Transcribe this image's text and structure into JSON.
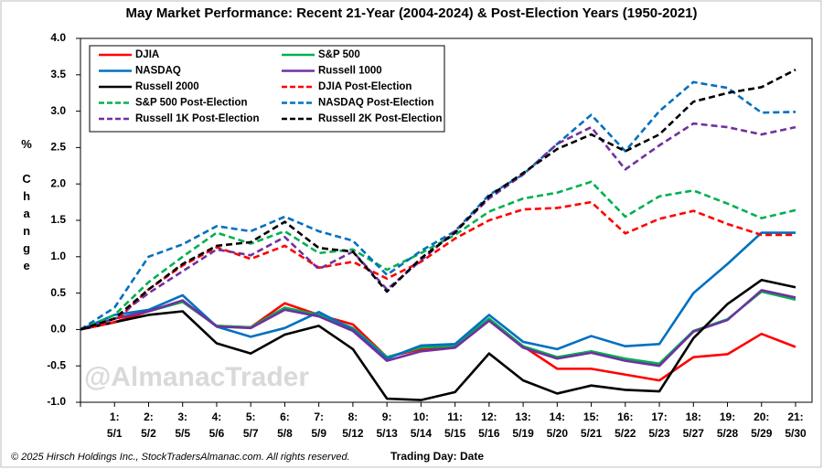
{
  "chart_data": {
    "type": "line",
    "title": "May Market Performance: Recent 21-Year (2004-2024) & Post-Election Years (1950-2021)",
    "y_label": "% Change",
    "x_label": "Trading Day: Date",
    "watermark": "@AlmanacTrader",
    "footer": "© 2025 Hirsch Holdings Inc., StockTradersAlmanac.com. All rights reserved.",
    "categories": [
      null,
      "1:",
      "2:",
      "3:",
      "4:",
      "5:",
      "6:",
      "7:",
      "8:",
      "9:",
      "10:",
      "11:",
      "12:",
      "13:",
      "14:",
      "15:",
      "16:",
      "17:",
      "18:",
      "19:",
      "20:",
      "21:"
    ],
    "category_dates": [
      null,
      "5/1",
      "5/2",
      "5/5",
      "5/6",
      "5/7",
      "5/8",
      "5/9",
      "5/12",
      "5/13",
      "5/14",
      "5/15",
      "5/16",
      "5/19",
      "5/20",
      "5/21",
      "5/22",
      "5/23",
      "5/27",
      "5/28",
      "5/29",
      "5/30"
    ],
    "ylim": [
      -1,
      4
    ],
    "yticks": [
      {
        "value": -1,
        "label": "-1.0"
      },
      {
        "value": -0.5,
        "label": "-0.5"
      },
      {
        "value": 0,
        "label": "0.0"
      },
      {
        "value": 0.5,
        "label": "0.5"
      },
      {
        "value": 1,
        "label": "1.0"
      },
      {
        "value": 1.5,
        "label": "1.5"
      },
      {
        "value": 2,
        "label": "2.0"
      },
      {
        "value": 2.5,
        "label": "2.5"
      },
      {
        "value": 3,
        "label": "3.0"
      },
      {
        "value": 3.5,
        "label": "3.5"
      },
      {
        "value": 4,
        "label": "4.0"
      }
    ],
    "grid": false,
    "legend": "top-left",
    "series": [
      {
        "name": "DJIA",
        "color": "#ff0000",
        "dashed": false,
        "values": [
          0,
          0.1,
          0.25,
          0.38,
          0.05,
          0.03,
          0.36,
          0.2,
          0.07,
          -0.38,
          -0.27,
          -0.22,
          0.13,
          -0.23,
          -0.54,
          -0.54,
          -0.62,
          -0.7,
          -0.38,
          -0.34,
          -0.06,
          -0.24
        ]
      },
      {
        "name": "S&P 500",
        "color": "#00b050",
        "dashed": false,
        "values": [
          0,
          0.15,
          0.25,
          0.38,
          0.05,
          0.03,
          0.3,
          0.2,
          0.02,
          -0.38,
          -0.25,
          -0.22,
          0.15,
          -0.23,
          -0.38,
          -0.3,
          -0.4,
          -0.47,
          -0.02,
          0.14,
          0.52,
          0.41
        ]
      },
      {
        "name": "NASDAQ",
        "color": "#0070c0",
        "dashed": false,
        "values": [
          0,
          0.2,
          0.27,
          0.47,
          0.04,
          -0.1,
          0.02,
          0.24,
          0,
          -0.4,
          -0.22,
          -0.2,
          0.2,
          -0.17,
          -0.27,
          -0.09,
          -0.23,
          -0.2,
          0.5,
          0.9,
          1.33,
          1.33
        ]
      },
      {
        "name": "Russell 1000",
        "color": "#7030a0",
        "dashed": false,
        "values": [
          0,
          0.15,
          0.25,
          0.4,
          0.04,
          0.02,
          0.27,
          0.18,
          -0.02,
          -0.43,
          -0.3,
          -0.25,
          0.12,
          -0.25,
          -0.4,
          -0.32,
          -0.43,
          -0.5,
          -0.03,
          0.13,
          0.54,
          0.44
        ]
      },
      {
        "name": "Russell 2000",
        "color": "#000000",
        "dashed": false,
        "values": [
          0,
          0.1,
          0.2,
          0.25,
          -0.19,
          -0.33,
          -0.07,
          0.05,
          -0.27,
          -0.95,
          -0.97,
          -0.86,
          -0.33,
          -0.7,
          -0.88,
          -0.77,
          -0.83,
          -0.85,
          -0.12,
          0.35,
          0.68,
          0.58
        ]
      },
      {
        "name": "DJIA Post-Election",
        "color": "#ff0000",
        "dashed": true,
        "values": [
          0,
          0.1,
          0.55,
          0.88,
          1.13,
          0.97,
          1.15,
          0.85,
          0.93,
          0.7,
          0.93,
          1.25,
          1.5,
          1.65,
          1.67,
          1.75,
          1.32,
          1.52,
          1.63,
          1.45,
          1.3,
          1.3
        ]
      },
      {
        "name": "S&P 500 Post-Election",
        "color": "#00b050",
        "dashed": true,
        "values": [
          0,
          0.2,
          0.65,
          1.0,
          1.33,
          1.18,
          1.35,
          1.05,
          1.1,
          0.82,
          1.05,
          1.3,
          1.62,
          1.8,
          1.88,
          2.03,
          1.55,
          1.83,
          1.91,
          1.73,
          1.53,
          1.64
        ]
      },
      {
        "name": "NASDAQ Post-Election",
        "color": "#0070c0",
        "dashed": true,
        "values": [
          0,
          0.3,
          1.0,
          1.17,
          1.42,
          1.35,
          1.55,
          1.35,
          1.22,
          0.75,
          1.08,
          1.35,
          1.85,
          2.13,
          2.55,
          2.95,
          2.45,
          3.0,
          3.4,
          3.32,
          2.98,
          2.99
        ]
      },
      {
        "name": "Russell 1K Post-Election",
        "color": "#7030a0",
        "dashed": true,
        "values": [
          0,
          0.15,
          0.5,
          0.8,
          1.1,
          1.02,
          1.27,
          0.83,
          1.07,
          0.55,
          0.95,
          1.35,
          1.8,
          2.13,
          2.55,
          2.78,
          2.2,
          2.53,
          2.83,
          2.78,
          2.68,
          2.78
        ]
      },
      {
        "name": "Russell 2K Post-Election",
        "color": "#000000",
        "dashed": true,
        "values": [
          0,
          0.15,
          0.55,
          0.9,
          1.15,
          1.2,
          1.48,
          1.12,
          1.07,
          0.52,
          0.98,
          1.33,
          1.83,
          2.15,
          2.48,
          2.68,
          2.45,
          2.68,
          3.13,
          3.25,
          3.33,
          3.57
        ]
      }
    ]
  }
}
